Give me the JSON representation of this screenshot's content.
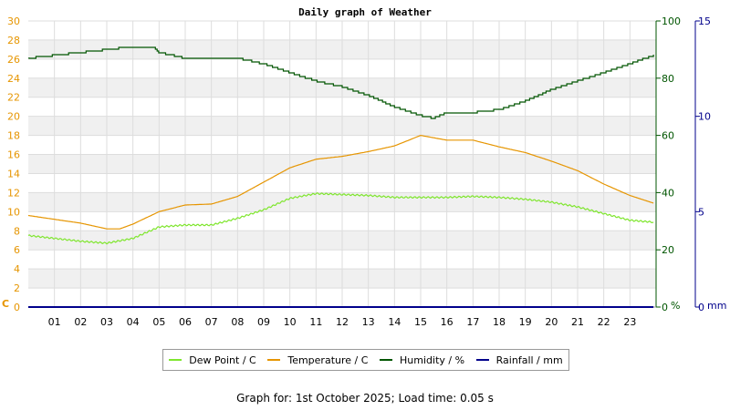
{
  "chart_data": {
    "type": "line",
    "title": "Daily graph of Weather",
    "x_ticks": [
      "01",
      "02",
      "03",
      "04",
      "05",
      "06",
      "07",
      "08",
      "09",
      "10",
      "11",
      "12",
      "13",
      "14",
      "15",
      "16",
      "17",
      "18",
      "19",
      "20",
      "21",
      "22",
      "23"
    ],
    "xlim": [
      0,
      24
    ],
    "axes": {
      "left": {
        "unit": "C",
        "ylim": [
          0,
          30
        ],
        "ticks": [
          0,
          2,
          4,
          6,
          8,
          10,
          12,
          14,
          16,
          18,
          20,
          22,
          24,
          26,
          28,
          30
        ],
        "color": "#e69500"
      },
      "right_humidity": {
        "unit": "%",
        "ylim": [
          0,
          100
        ],
        "ticks": [
          0,
          20,
          40,
          60,
          80,
          100
        ],
        "color": "#005500"
      },
      "right_rain": {
        "unit": "mm",
        "ylim": [
          0,
          15
        ],
        "ticks": [
          0,
          5,
          10,
          15
        ],
        "color": "#00008b"
      }
    },
    "grid": true,
    "series": [
      {
        "name": "Dew Point / C",
        "axis": "left",
        "color": "#7fe62e",
        "x": [
          0,
          1,
          2,
          3,
          4,
          5,
          6,
          7,
          8,
          9,
          10,
          11,
          12,
          13,
          14,
          15,
          16,
          17,
          18,
          19,
          20,
          21,
          22,
          23,
          23.9
        ],
        "values": [
          7.5,
          7.2,
          6.9,
          6.7,
          7.2,
          8.4,
          8.6,
          8.6,
          9.3,
          10.2,
          11.4,
          11.9,
          11.8,
          11.7,
          11.5,
          11.5,
          11.5,
          11.6,
          11.5,
          11.3,
          11.0,
          10.5,
          9.8,
          9.1,
          8.9
        ]
      },
      {
        "name": "Temperature / C",
        "axis": "left",
        "color": "#e69500",
        "x": [
          0,
          1,
          2,
          3,
          3.5,
          4,
          5,
          6,
          7,
          8,
          9,
          10,
          11,
          12,
          13,
          14,
          15,
          16,
          17,
          18,
          19,
          20,
          21,
          22,
          23,
          23.9
        ],
        "values": [
          9.6,
          9.2,
          8.8,
          8.2,
          8.2,
          8.7,
          10.0,
          10.7,
          10.8,
          11.6,
          13.1,
          14.6,
          15.5,
          15.8,
          16.3,
          16.9,
          18.0,
          17.5,
          17.5,
          16.8,
          16.2,
          15.3,
          14.3,
          12.9,
          11.7,
          10.9
        ]
      },
      {
        "name": "Humidity / %",
        "axis": "right_humidity",
        "color": "#005500",
        "x": [
          0,
          1,
          2,
          3,
          4,
          4.8,
          5,
          6,
          7,
          8,
          9,
          10,
          11,
          12,
          13,
          14,
          15,
          15.5,
          16,
          17,
          18,
          19,
          20,
          21,
          22,
          23,
          23.9
        ],
        "values": [
          87,
          88,
          89,
          90,
          91,
          91,
          89,
          87,
          87,
          87,
          85,
          82,
          79,
          77,
          74,
          70,
          67,
          66,
          68,
          68,
          69,
          72,
          76,
          79,
          82,
          85,
          88
        ]
      },
      {
        "name": "Rainfall / mm",
        "axis": "right_rain",
        "color": "#00008b",
        "x": [
          0,
          23.9
        ],
        "values": [
          0,
          0
        ]
      }
    ],
    "legend_position": "bottom-center"
  },
  "footer": "Graph for: 1st October 2025; Load time: 0.05 s"
}
